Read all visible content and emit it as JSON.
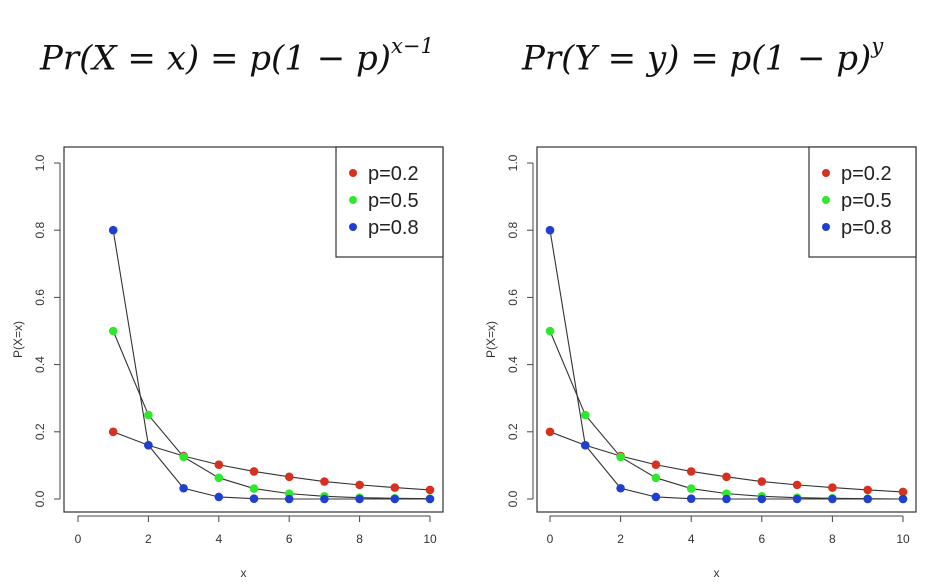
{
  "formulas": {
    "left": {
      "lhs": "Pr(X = x) = p(1 − p)",
      "sup": "x−1"
    },
    "right": {
      "lhs": "Pr(Y = y) = p(1 − p)",
      "sup": "y"
    }
  },
  "chart_data": [
    {
      "type": "scatter",
      "xlabel": "x",
      "ylabel": "P(X=x)",
      "xlim": [
        0,
        10
      ],
      "ylim": [
        0,
        1
      ],
      "xticks": [
        0,
        2,
        4,
        6,
        8,
        10
      ],
      "yticks": [
        "0.0",
        "0.2",
        "0.4",
        "0.6",
        "0.8",
        "1.0"
      ],
      "legend_position": "top-right",
      "connected": true,
      "series": [
        {
          "name": "p=0.2",
          "color": "#d7301f",
          "x": [
            1,
            2,
            3,
            4,
            5,
            6,
            7,
            8,
            9,
            10
          ],
          "y": [
            0.2,
            0.16,
            0.128,
            0.102,
            0.082,
            0.066,
            0.052,
            0.042,
            0.034,
            0.027
          ]
        },
        {
          "name": "p=0.5",
          "color": "#2ee82e",
          "x": [
            1,
            2,
            3,
            4,
            5,
            6,
            7,
            8,
            9,
            10
          ],
          "y": [
            0.5,
            0.25,
            0.125,
            0.063,
            0.031,
            0.016,
            0.008,
            0.004,
            0.002,
            0.001
          ]
        },
        {
          "name": "p=0.8",
          "color": "#1f3fd1",
          "x": [
            1,
            2,
            3,
            4,
            5,
            6,
            7,
            8,
            9,
            10
          ],
          "y": [
            0.8,
            0.16,
            0.032,
            0.006,
            0.001,
            0.0,
            0.0,
            0.0,
            0.0,
            0.0
          ]
        }
      ]
    },
    {
      "type": "scatter",
      "xlabel": "x",
      "ylabel": "P(X=x)",
      "xlim": [
        0,
        10
      ],
      "ylim": [
        0,
        1
      ],
      "xticks": [
        0,
        2,
        4,
        6,
        8,
        10
      ],
      "yticks": [
        "0.0",
        "0.2",
        "0.4",
        "0.6",
        "0.8",
        "1.0"
      ],
      "legend_position": "top-right",
      "connected": true,
      "series": [
        {
          "name": "p=0.2",
          "color": "#d7301f",
          "x": [
            0,
            1,
            2,
            3,
            4,
            5,
            6,
            7,
            8,
            9,
            10
          ],
          "y": [
            0.2,
            0.16,
            0.128,
            0.102,
            0.082,
            0.066,
            0.052,
            0.042,
            0.034,
            0.027,
            0.021
          ]
        },
        {
          "name": "p=0.5",
          "color": "#2ee82e",
          "x": [
            0,
            1,
            2,
            3,
            4,
            5,
            6,
            7,
            8,
            9,
            10
          ],
          "y": [
            0.5,
            0.25,
            0.125,
            0.063,
            0.031,
            0.016,
            0.008,
            0.004,
            0.002,
            0.001,
            0.0
          ]
        },
        {
          "name": "p=0.8",
          "color": "#1f3fd1",
          "x": [
            0,
            1,
            2,
            3,
            4,
            5,
            6,
            7,
            8,
            9,
            10
          ],
          "y": [
            0.8,
            0.16,
            0.032,
            0.006,
            0.001,
            0.0,
            0.0,
            0.0,
            0.0,
            0.0,
            0.0
          ]
        }
      ]
    }
  ]
}
